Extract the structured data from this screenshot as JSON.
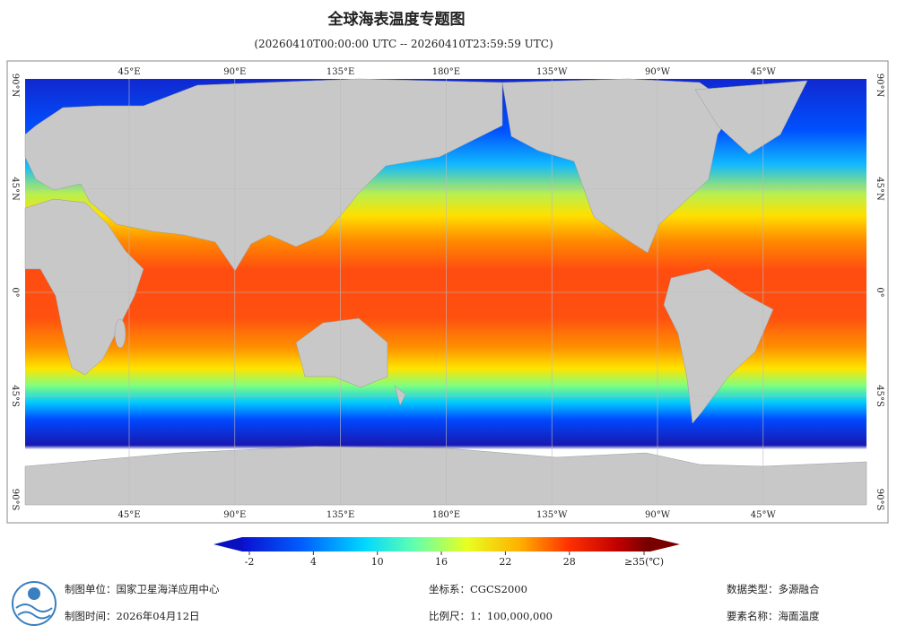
{
  "header": {
    "title": "全球海表温度专题图",
    "subtitle": "(20260410T00:00:00 UTC -- 20260410T23:59:59 UTC)"
  },
  "map": {
    "lon_labels": [
      "45°E",
      "90°E",
      "135°E",
      "180°E",
      "135°W",
      "90°W",
      "45°W"
    ],
    "lat_labels": [
      "90°N",
      "45°N",
      "0°",
      "45°S",
      "90°S"
    ]
  },
  "colorbar": {
    "ticks": [
      -2,
      4,
      10,
      16,
      22,
      28,
      {
        "value": 35,
        "label": "≥35(℃)"
      }
    ]
  },
  "footer": {
    "left": [
      "制图单位：国家卫星海洋应用中心",
      "制图时间：2026年04月12日"
    ],
    "middle": [
      "坐标系：CGCS2000",
      "比例尺：1：100,000,000"
    ],
    "right": [
      "数据类型：多源融合",
      "要素名称：海面温度"
    ]
  }
}
